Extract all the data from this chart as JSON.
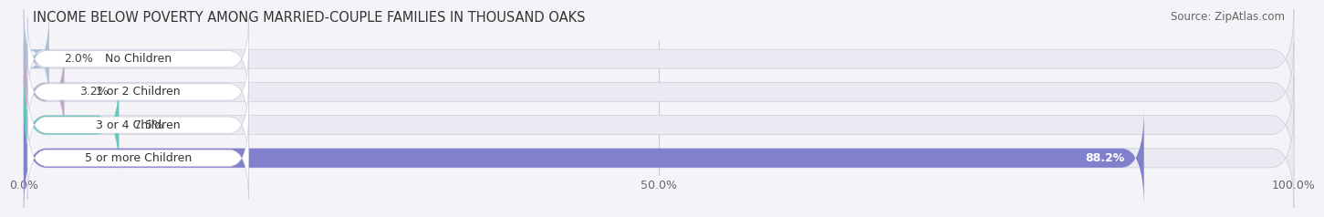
{
  "title": "INCOME BELOW POVERTY AMONG MARRIED-COUPLE FAMILIES IN THOUSAND OAKS",
  "source": "Source: ZipAtlas.com",
  "categories": [
    "No Children",
    "1 or 2 Children",
    "3 or 4 Children",
    "5 or more Children"
  ],
  "values": [
    2.0,
    3.2,
    7.5,
    88.2
  ],
  "bar_colors": [
    "#aabfd8",
    "#c0a8c8",
    "#5ec8bc",
    "#8080cc"
  ],
  "bar_bg_color": "#eaeaf2",
  "label_bg_color": "#ffffff",
  "xlim": [
    0,
    100
  ],
  "xticks": [
    0.0,
    50.0,
    100.0
  ],
  "xtick_labels": [
    "0.0%",
    "50.0%",
    "100.0%"
  ],
  "title_fontsize": 10.5,
  "source_fontsize": 8.5,
  "label_fontsize": 9,
  "value_fontsize": 9,
  "bar_height": 0.58,
  "fig_bg_color": "#f4f4f8"
}
